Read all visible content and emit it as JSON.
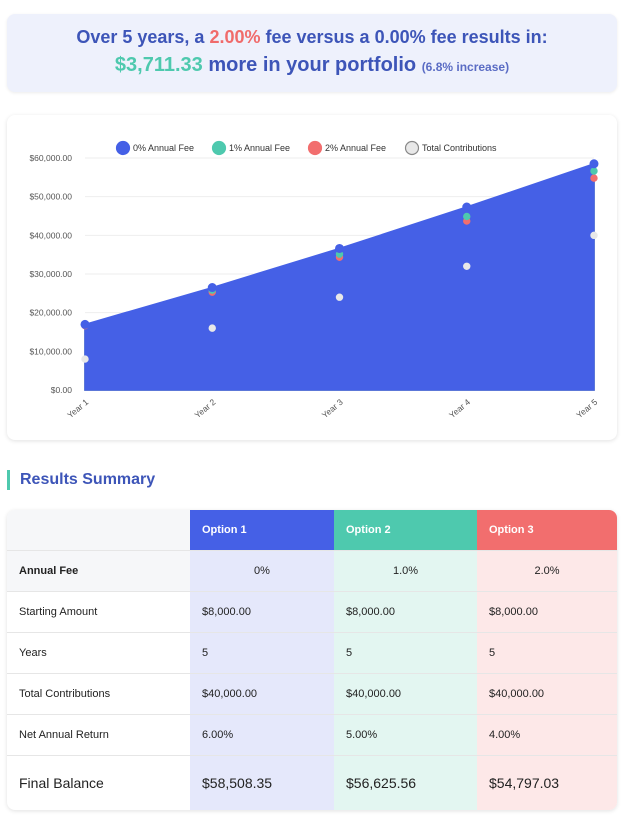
{
  "summary": {
    "prefix": "Over 5 years, a ",
    "fee_high": "2.00%",
    "middle": " fee versus a ",
    "fee_low": "0.00%",
    "suffix": " fee results in:",
    "difference": "$3,711.33",
    "difference_text": " more in your portfolio ",
    "increase_note": "(6.8% increase)"
  },
  "chart_data": {
    "type": "area",
    "categories": [
      "Year 1",
      "Year 2",
      "Year 3",
      "Year 4",
      "Year 5"
    ],
    "series": [
      {
        "name": "0% Annual Fee",
        "color": "#4560e6",
        "values": [
          16960,
          26498,
          36608,
          47325,
          58508
        ]
      },
      {
        "name": "1% Annual Fee",
        "color": "#4ec9ae",
        "values": [
          16800,
          25830,
          35122,
          44878,
          56626
        ]
      },
      {
        "name": "2% Annual Fee",
        "color": "#f26e6e",
        "values": [
          16640,
          25306,
          34318,
          43691,
          54797
        ]
      },
      {
        "name": "Total Contributions",
        "color": "#e8e8e8",
        "values": [
          8000,
          16000,
          24000,
          32000,
          40000
        ]
      }
    ],
    "yticks": [
      "$0.00",
      "$10,000.00",
      "$20,000.00",
      "$30,000.00",
      "$40,000.00",
      "$50,000.00",
      "$60,000.00"
    ],
    "ylim": [
      0,
      60000
    ],
    "legend_position": "top"
  },
  "section_title": "Results Summary",
  "table": {
    "headers": [
      "",
      "Option 1",
      "Option 2",
      "Option 3"
    ],
    "rows": [
      {
        "label": "Annual Fee",
        "values": [
          "0%",
          "1.0%",
          "2.0%"
        ]
      },
      {
        "label": "Starting Amount",
        "values": [
          "$8,000.00",
          "$8,000.00",
          "$8,000.00"
        ]
      },
      {
        "label": "Years",
        "values": [
          "5",
          "5",
          "5"
        ]
      },
      {
        "label": "Total Contributions",
        "values": [
          "$40,000.00",
          "$40,000.00",
          "$40,000.00"
        ]
      },
      {
        "label": "Net Annual Return",
        "values": [
          "6.00%",
          "5.00%",
          "4.00%"
        ]
      },
      {
        "label": "Final Balance",
        "values": [
          "$58,508.35",
          "$56,625.56",
          "$54,797.03"
        ]
      }
    ]
  }
}
